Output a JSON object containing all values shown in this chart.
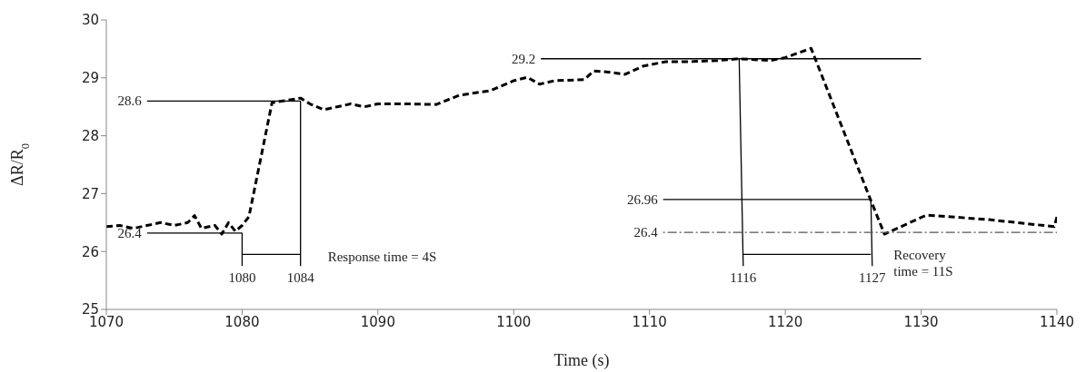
{
  "chart_data": {
    "type": "line",
    "xlabel": "Time (s)",
    "ylabel": "ΔR/R$_{0}$",
    "xlim": [
      1070,
      1140
    ],
    "xticks": [
      1070,
      1080,
      1090,
      1100,
      1110,
      1120,
      1130,
      1140
    ],
    "ylim": [
      25,
      30
    ],
    "yticks": [
      25,
      26,
      27,
      28,
      29,
      30
    ],
    "grid": false,
    "marker": "none",
    "series": [
      {
        "color": "#000000",
        "line_style": "dashed",
        "x": [
          1070,
          1071,
          1072,
          1073,
          1074,
          1075,
          1076,
          1076.5,
          1077,
          1078,
          1078.5,
          1079,
          1079.5,
          1080,
          1080.5,
          1082.2,
          1083,
          1084.3,
          1085,
          1086,
          1087,
          1088,
          1089,
          1090,
          1092,
          1094.3,
          1096,
          1098.3,
          1100,
          1101,
          1101.9,
          1103,
          1105.2,
          1105.9,
          1107,
          1108.2,
          1109.5,
          1111.2,
          1113,
          1115,
          1116.6,
          1118.9,
          1120,
          1121.9,
          1126.2,
          1127.3,
          1130.4,
          1135,
          1139.8,
          1140
        ],
        "values": [
          26.43,
          26.45,
          26.4,
          26.45,
          26.5,
          26.45,
          26.5,
          26.62,
          26.4,
          26.45,
          26.3,
          26.5,
          26.35,
          26.45,
          26.6,
          28.57,
          28.6,
          28.65,
          28.55,
          28.45,
          28.5,
          28.55,
          28.5,
          28.55,
          28.55,
          28.54,
          28.7,
          28.78,
          28.95,
          29.01,
          28.89,
          28.95,
          28.97,
          29.12,
          29.1,
          29.06,
          29.2,
          29.28,
          29.28,
          29.3,
          29.33,
          29.3,
          29.35,
          29.51,
          26.94,
          26.3,
          26.63,
          26.55,
          26.43,
          26.6
        ]
      },
      {
        "color": "#000000",
        "line_style": "solid",
        "x": [
          1073,
          1084.3
        ],
        "values": [
          28.6,
          28.6
        ]
      },
      {
        "color": "#000000",
        "line_style": "solid",
        "x": [
          1073,
          1080
        ],
        "values": [
          26.32,
          26.32
        ]
      },
      {
        "color": "#000000",
        "line_style": "solid",
        "x": [
          1080,
          1080
        ],
        "values": [
          26.32,
          25.75
        ]
      },
      {
        "color": "#000000",
        "line_style": "solid",
        "x": [
          1084.3,
          1084.3
        ],
        "values": [
          28.6,
          25.75
        ]
      },
      {
        "color": "#000000",
        "line_style": "solid",
        "x": [
          1080,
          1084.3
        ],
        "values": [
          25.95,
          25.95
        ]
      },
      {
        "color": "#000000",
        "line_style": "solid",
        "x": [
          1102,
          1130
        ],
        "values": [
          29.33,
          29.33
        ]
      },
      {
        "color": "#000000",
        "line_style": "solid",
        "x": [
          1116.6,
          1116.9
        ],
        "values": [
          29.33,
          25.75
        ]
      },
      {
        "color": "#000000",
        "line_style": "solid",
        "x": [
          1111,
          1126.3
        ],
        "values": [
          26.9,
          26.9
        ]
      },
      {
        "color": "#000000",
        "line_style": "solid",
        "x": [
          1126.3,
          1126.4
        ],
        "values": [
          26.9,
          25.75
        ]
      },
      {
        "color": "#555555",
        "line_style": "dotted",
        "x": [
          1111,
          1140
        ],
        "values": [
          26.33,
          26.33
        ]
      },
      {
        "color": "#000000",
        "line_style": "solid",
        "x": [
          1116.9,
          1126.3
        ],
        "values": [
          25.95,
          25.95
        ]
      }
    ],
    "annotations": [
      {
        "text": "28.6",
        "x": 1073,
        "y": 28.6
      },
      {
        "text": "26.4",
        "x": 1073,
        "y": 26.32
      },
      {
        "text": "1080",
        "x": 1080,
        "y": 25.75
      },
      {
        "text": "1084",
        "x": 1084.3,
        "y": 25.75
      },
      {
        "text": "Response time = 4S",
        "x": 1084.3,
        "y": 25.95
      },
      {
        "text": "29.2",
        "x": 1102,
        "y": 29.33
      },
      {
        "text": "26.96",
        "x": 1111,
        "y": 26.9
      },
      {
        "text": "26.4",
        "x": 1111,
        "y": 26.33
      },
      {
        "text": "1116",
        "x": 1116.9,
        "y": 25.75
      },
      {
        "text": "1127",
        "x": 1126.4,
        "y": 25.75
      },
      {
        "text": "Recovery\ntime = 11S",
        "x": 1127.3,
        "y": 26.3
      }
    ]
  }
}
